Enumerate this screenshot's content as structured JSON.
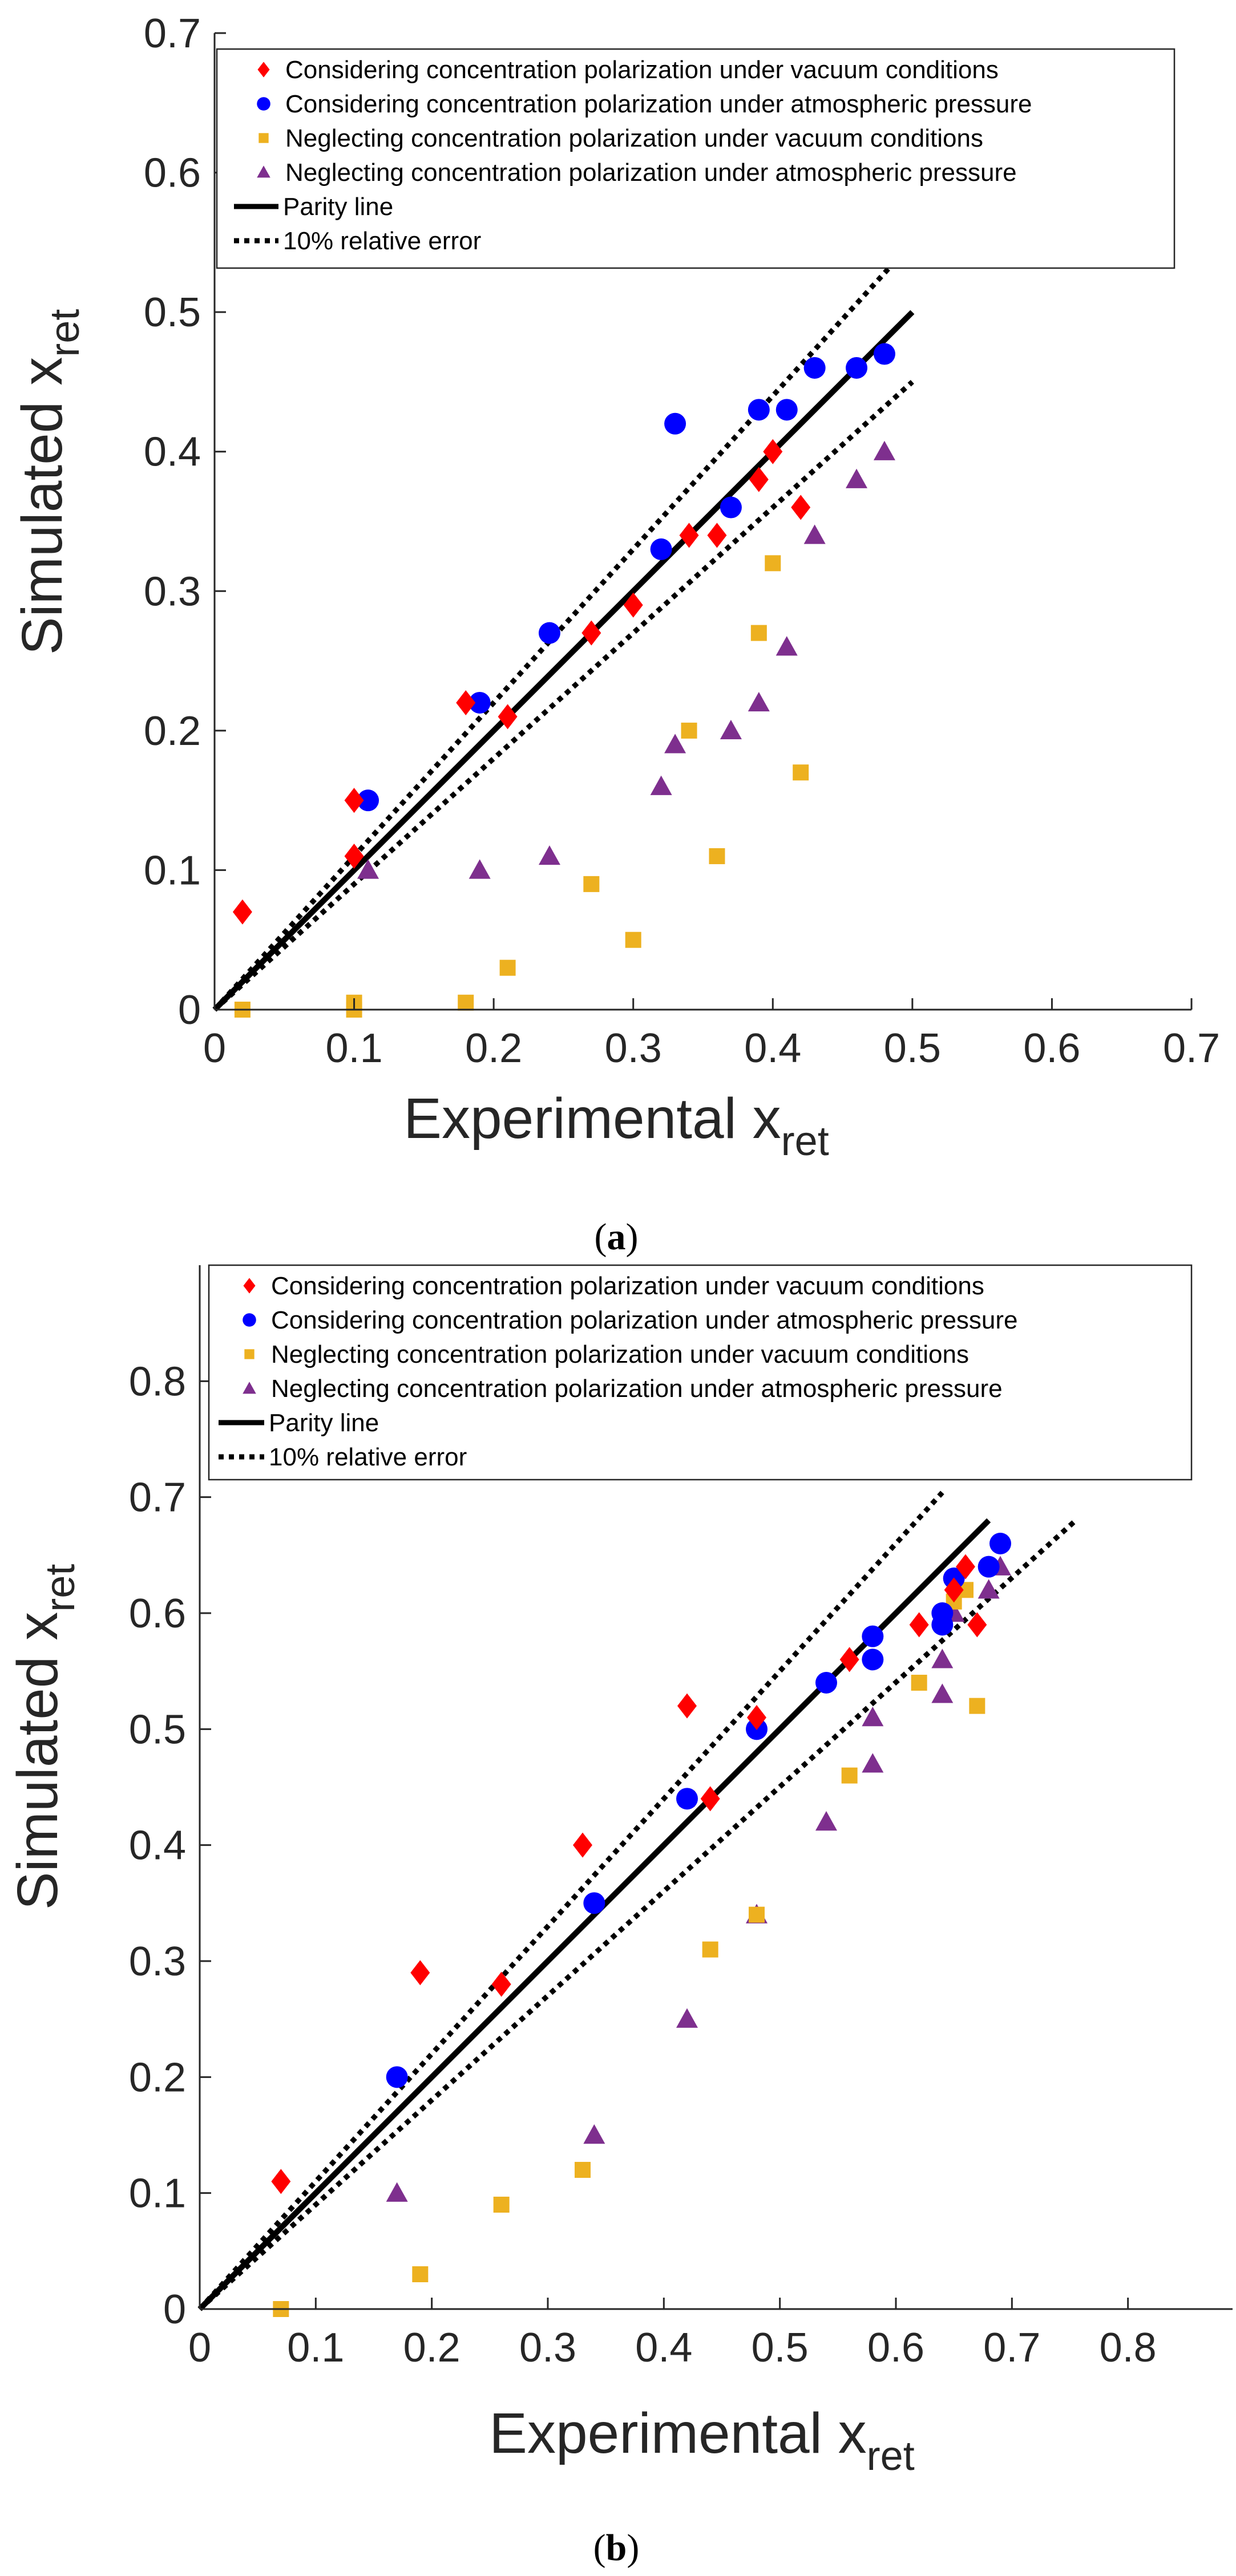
{
  "colors": {
    "vac_cp": "#ff0000",
    "atm_cp": "#0000ff",
    "vac_ncp": "#edb120",
    "atm_ncp": "#7e2f8e",
    "line": "#000000",
    "axis": "#262626"
  },
  "chart_data": [
    {
      "id": "a",
      "type": "scatter",
      "caption_open": "(",
      "caption_letter": "a",
      "caption_close": ")",
      "xlabel_main": "Experimental x",
      "xlabel_sub": "ret",
      "ylabel_main": "Simulated x",
      "ylabel_sub": "ret",
      "xlim": [
        0,
        0.7
      ],
      "ylim": [
        0,
        0.7
      ],
      "xticks": [
        0,
        0.1,
        0.2,
        0.3,
        0.4,
        0.5,
        0.6,
        0.7
      ],
      "yticks": [
        0,
        0.1,
        0.2,
        0.3,
        0.4,
        0.5,
        0.6,
        0.7
      ],
      "tick_labels_x": [
        "0",
        "0.1",
        "0.2",
        "0.3",
        "0.4",
        "0.5",
        "0.6",
        "0.7"
      ],
      "tick_labels_y": [
        "0",
        "0.1",
        "0.2",
        "0.3",
        "0.4",
        "0.5",
        "0.6",
        "0.7"
      ],
      "grid": false,
      "legend": {
        "position": "top",
        "entries": [
          {
            "label": "Considering concentration polarization under vacuum conditions",
            "marker": "diamond",
            "color": "#ff0000"
          },
          {
            "label": "Considering concentration polarization under atmospheric pressure",
            "marker": "circle",
            "color": "#0000ff"
          },
          {
            "label": "Neglecting concentration polarization under vacuum conditions",
            "marker": "square",
            "color": "#edb120"
          },
          {
            "label": "Neglecting concentration polarization under atmospheric pressure",
            "marker": "triangle",
            "color": "#7e2f8e"
          },
          {
            "label": "Parity line",
            "marker": "solid-line",
            "color": "#000000"
          },
          {
            "label": "10% relative error",
            "marker": "dotted-line",
            "color": "#000000"
          }
        ]
      },
      "lines": {
        "parity": {
          "x": [
            0,
            0.5
          ],
          "y": [
            0,
            0.5
          ]
        },
        "upper_error": {
          "x": [
            0,
            0.49
          ],
          "y": [
            0,
            0.539
          ]
        },
        "lower_error": {
          "x": [
            0,
            0.5
          ],
          "y": [
            0,
            0.45
          ]
        }
      },
      "series": [
        {
          "name": "Considering concentration polarization under vacuum conditions",
          "marker": "diamond",
          "color": "#ff0000",
          "x": [
            0.02,
            0.1,
            0.1,
            0.18,
            0.21,
            0.27,
            0.3,
            0.34,
            0.36,
            0.39,
            0.4,
            0.42
          ],
          "y": [
            0.07,
            0.15,
            0.11,
            0.22,
            0.21,
            0.27,
            0.29,
            0.34,
            0.34,
            0.38,
            0.4,
            0.36
          ]
        },
        {
          "name": "Considering concentration polarization under atmospheric pressure",
          "marker": "circle",
          "color": "#0000ff",
          "x": [
            0.11,
            0.19,
            0.24,
            0.32,
            0.33,
            0.37,
            0.39,
            0.41,
            0.43,
            0.46,
            0.48
          ],
          "y": [
            0.15,
            0.22,
            0.27,
            0.33,
            0.42,
            0.36,
            0.43,
            0.43,
            0.46,
            0.46,
            0.47
          ]
        },
        {
          "name": "Neglecting concentration polarization under vacuum conditions",
          "marker": "square",
          "color": "#edb120",
          "x": [
            0.02,
            0.1,
            0.1,
            0.18,
            0.21,
            0.27,
            0.3,
            0.34,
            0.36,
            0.39,
            0.4,
            0.42
          ],
          "y": [
            0.0,
            0.0,
            0.005,
            0.005,
            0.03,
            0.09,
            0.05,
            0.2,
            0.11,
            0.27,
            0.32,
            0.17
          ]
        },
        {
          "name": "Neglecting concentration polarization under atmospheric pressure",
          "marker": "triangle",
          "color": "#7e2f8e",
          "x": [
            0.11,
            0.19,
            0.24,
            0.32,
            0.33,
            0.37,
            0.39,
            0.41,
            0.43,
            0.46,
            0.48
          ],
          "y": [
            0.1,
            0.1,
            0.11,
            0.16,
            0.19,
            0.2,
            0.22,
            0.26,
            0.34,
            0.38,
            0.4
          ]
        }
      ]
    },
    {
      "id": "b",
      "type": "scatter",
      "caption_open": "(",
      "caption_letter": "b",
      "caption_close": ")",
      "xlabel_main": "Experimental x",
      "xlabel_sub": "ret",
      "ylabel_main": "Simulated x",
      "ylabel_sub": "ret",
      "xlim": [
        0,
        0.9
      ],
      "ylim": [
        0,
        0.9
      ],
      "xticks": [
        0,
        0.1,
        0.2,
        0.3,
        0.4,
        0.5,
        0.6,
        0.7,
        0.8
      ],
      "yticks": [
        0,
        0.1,
        0.2,
        0.3,
        0.4,
        0.5,
        0.6,
        0.7,
        0.8
      ],
      "tick_labels_x": [
        "0",
        "0.1",
        "0.2",
        "0.3",
        "0.4",
        "0.5",
        "0.6",
        "0.7",
        "0.8"
      ],
      "tick_labels_y": [
        "0",
        "0.1",
        "0.2",
        "0.3",
        "0.4",
        "0.5",
        "0.6",
        "0.7",
        "0.8"
      ],
      "grid": false,
      "legend": {
        "position": "top",
        "entries": [
          {
            "label": "Considering concentration polarization under vacuum conditions",
            "marker": "diamond",
            "color": "#ff0000"
          },
          {
            "label": "Considering concentration polarization under atmospheric pressure",
            "marker": "circle",
            "color": "#0000ff"
          },
          {
            "label": "Neglecting concentration polarization under vacuum conditions",
            "marker": "square",
            "color": "#edb120"
          },
          {
            "label": "Neglecting concentration polarization under atmospheric pressure",
            "marker": "triangle",
            "color": "#7e2f8e"
          },
          {
            "label": "Parity line",
            "marker": "solid-line",
            "color": "#000000"
          },
          {
            "label": "10% relative error",
            "marker": "dotted-line",
            "color": "#000000"
          }
        ]
      },
      "lines": {
        "parity": {
          "x": [
            0,
            0.68
          ],
          "y": [
            0,
            0.68
          ]
        },
        "upper_error": {
          "x": [
            0,
            0.64
          ],
          "y": [
            0,
            0.704
          ]
        },
        "lower_error": {
          "x": [
            0,
            0.755
          ],
          "y": [
            0,
            0.68
          ]
        }
      },
      "series": [
        {
          "name": "Considering concentration polarization under vacuum conditions",
          "marker": "diamond",
          "color": "#ff0000",
          "x": [
            0.07,
            0.19,
            0.26,
            0.33,
            0.42,
            0.44,
            0.48,
            0.56,
            0.62,
            0.65,
            0.66,
            0.67
          ],
          "y": [
            0.11,
            0.29,
            0.28,
            0.4,
            0.52,
            0.44,
            0.51,
            0.56,
            0.59,
            0.62,
            0.64,
            0.59
          ]
        },
        {
          "name": "Considering concentration polarization under atmospheric pressure",
          "marker": "circle",
          "color": "#0000ff",
          "x": [
            0.17,
            0.34,
            0.42,
            0.48,
            0.54,
            0.58,
            0.58,
            0.64,
            0.64,
            0.65,
            0.68,
            0.69
          ],
          "y": [
            0.2,
            0.35,
            0.44,
            0.5,
            0.54,
            0.58,
            0.56,
            0.6,
            0.59,
            0.63,
            0.64,
            0.66
          ]
        },
        {
          "name": "Neglecting concentration polarization under vacuum conditions",
          "marker": "square",
          "color": "#edb120",
          "x": [
            0.07,
            0.19,
            0.26,
            0.33,
            0.42,
            0.44,
            0.48,
            0.56,
            0.62,
            0.65,
            0.66,
            0.67
          ],
          "y": [
            0.0,
            0.03,
            0.09,
            0.12,
            0.44,
            0.31,
            0.34,
            0.46,
            0.54,
            0.61,
            0.62,
            0.52
          ]
        },
        {
          "name": "Neglecting concentration polarization under atmospheric pressure",
          "marker": "triangle",
          "color": "#7e2f8e",
          "x": [
            0.17,
            0.34,
            0.42,
            0.48,
            0.54,
            0.58,
            0.58,
            0.64,
            0.64,
            0.65,
            0.68,
            0.69
          ],
          "y": [
            0.1,
            0.15,
            0.25,
            0.34,
            0.42,
            0.51,
            0.47,
            0.56,
            0.53,
            0.6,
            0.62,
            0.64
          ]
        }
      ]
    }
  ]
}
